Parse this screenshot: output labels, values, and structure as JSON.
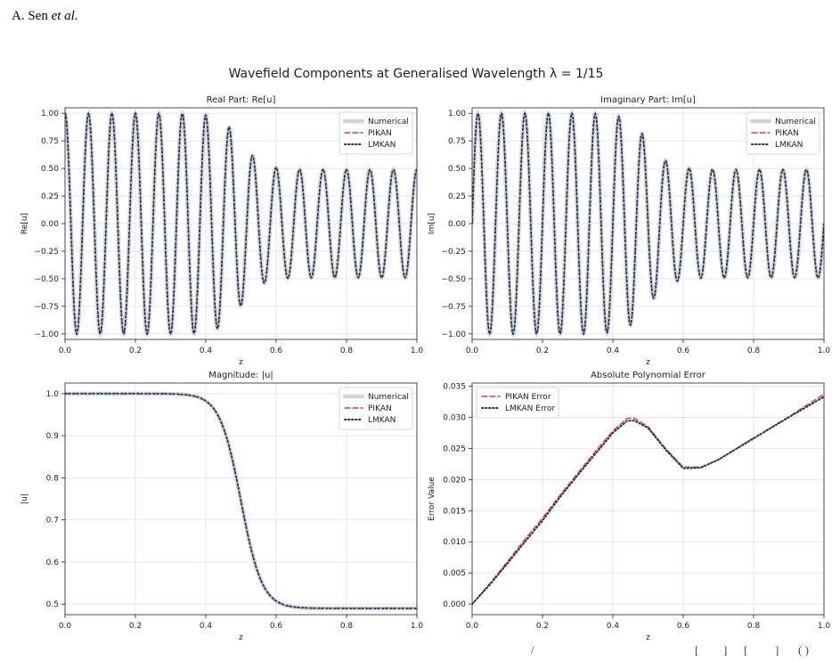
{
  "header": {
    "author": "A. Sen",
    "etal": "et al."
  },
  "figure": {
    "title": "Wavefield Components at Generalised Wavelength λ = 1/15"
  },
  "footer": {
    "frag1": "/",
    "frag2": "[",
    "frag3": "]",
    "frag4": "[",
    "frag5": "]",
    "frag6": "( )"
  },
  "colors": {
    "numerical": "#cfd5dc",
    "pikan": "#e23b3b",
    "lmkan": "#173d4f",
    "grid": "#e6e6e6"
  },
  "chart_data": [
    {
      "type": "line",
      "title": "Real Part: Re[u]",
      "xlabel": "z",
      "ylabel": "Re[u]",
      "xlim": [
        0,
        1
      ],
      "ylim": [
        -1.05,
        1.05
      ],
      "xticks": [
        "0.0",
        "0.2",
        "0.4",
        "0.6",
        "0.8",
        "1.0"
      ],
      "yticks": [
        "−1.00",
        "−0.75",
        "−0.50",
        "−0.25",
        "0.00",
        "0.25",
        "0.50",
        "0.75",
        "1.00"
      ],
      "ytick_values": [
        -1.0,
        -0.75,
        -0.5,
        -0.25,
        0.0,
        0.25,
        0.5,
        0.75,
        1.0
      ],
      "legend": [
        "Numerical",
        "PIKAN",
        "LMKAN"
      ],
      "legend_loc": "upper-right",
      "grid": true,
      "function": "real",
      "wavenumber": 94.25,
      "envelope": {
        "high": 1.0,
        "low": 0.49,
        "center": 0.5,
        "width": 0.06
      }
    },
    {
      "type": "line",
      "title": "Imaginary Part: Im[u]",
      "xlabel": "z",
      "ylabel": "Im[u]",
      "xlim": [
        0,
        1
      ],
      "ylim": [
        -1.05,
        1.05
      ],
      "xticks": [
        "0.0",
        "0.2",
        "0.4",
        "0.6",
        "0.8",
        "1.0"
      ],
      "yticks": [
        "−1.00",
        "−0.75",
        "−0.50",
        "−0.25",
        "0.00",
        "0.25",
        "0.50",
        "0.75",
        "1.00"
      ],
      "ytick_values": [
        -1.0,
        -0.75,
        -0.5,
        -0.25,
        0.0,
        0.25,
        0.5,
        0.75,
        1.0
      ],
      "legend": [
        "Numerical",
        "PIKAN",
        "LMKAN"
      ],
      "legend_loc": "upper-right",
      "grid": true,
      "function": "imag",
      "wavenumber": 94.25,
      "envelope": {
        "high": 1.0,
        "low": 0.49,
        "center": 0.5,
        "width": 0.06
      }
    },
    {
      "type": "line",
      "title": "Magnitude: |u|",
      "xlabel": "z",
      "ylabel": "|u|",
      "xlim": [
        0,
        1
      ],
      "ylim": [
        0.475,
        1.025
      ],
      "xticks": [
        "0.0",
        "0.2",
        "0.4",
        "0.6",
        "0.8",
        "1.0"
      ],
      "yticks": [
        "0.5",
        "0.6",
        "0.7",
        "0.8",
        "0.9",
        "1.0"
      ],
      "ytick_values": [
        0.5,
        0.6,
        0.7,
        0.8,
        0.9,
        1.0
      ],
      "legend": [
        "Numerical",
        "PIKAN",
        "LMKAN"
      ],
      "legend_loc": "upper-right",
      "grid": true,
      "function": "abs",
      "envelope": {
        "high": 1.0,
        "low": 0.49,
        "center": 0.5,
        "width": 0.06
      }
    },
    {
      "type": "line",
      "title": "Absolute Polynomial Error",
      "xlabel": "z",
      "ylabel": "Error Value",
      "xlim": [
        0,
        1
      ],
      "ylim": [
        -0.0017,
        0.0355
      ],
      "xticks": [
        "0.0",
        "0.2",
        "0.4",
        "0.6",
        "0.8",
        "1.0"
      ],
      "yticks": [
        "0.000",
        "0.005",
        "0.010",
        "0.015",
        "0.020",
        "0.025",
        "0.030",
        "0.035"
      ],
      "ytick_values": [
        0.0,
        0.005,
        0.01,
        0.015,
        0.02,
        0.025,
        0.03,
        0.035
      ],
      "legend": [
        "PIKAN Error",
        "LMKAN Error"
      ],
      "legend_loc": "upper-left",
      "grid": true,
      "function": "error",
      "series": [
        {
          "name": "PIKAN Error",
          "x": [
            0,
            0.05,
            0.1,
            0.15,
            0.2,
            0.25,
            0.3,
            0.35,
            0.4,
            0.44,
            0.46,
            0.5,
            0.55,
            0.6,
            0.65,
            0.7,
            0.8,
            0.9,
            1.0
          ],
          "y": [
            0,
            0.0033,
            0.0068,
            0.0104,
            0.0138,
            0.0175,
            0.021,
            0.0245,
            0.0278,
            0.0298,
            0.0299,
            0.0285,
            0.025,
            0.022,
            0.022,
            0.0232,
            0.0267,
            0.0301,
            0.0337
          ]
        },
        {
          "name": "LMKAN Error",
          "x": [
            0,
            0.05,
            0.1,
            0.15,
            0.2,
            0.25,
            0.3,
            0.35,
            0.4,
            0.44,
            0.46,
            0.5,
            0.55,
            0.6,
            0.65,
            0.7,
            0.8,
            0.9,
            1.0
          ],
          "y": [
            0,
            0.0031,
            0.0065,
            0.01,
            0.0134,
            0.0172,
            0.0207,
            0.0241,
            0.0275,
            0.0294,
            0.0295,
            0.0283,
            0.0248,
            0.0218,
            0.0219,
            0.0232,
            0.0266,
            0.03,
            0.0333
          ]
        }
      ]
    }
  ]
}
